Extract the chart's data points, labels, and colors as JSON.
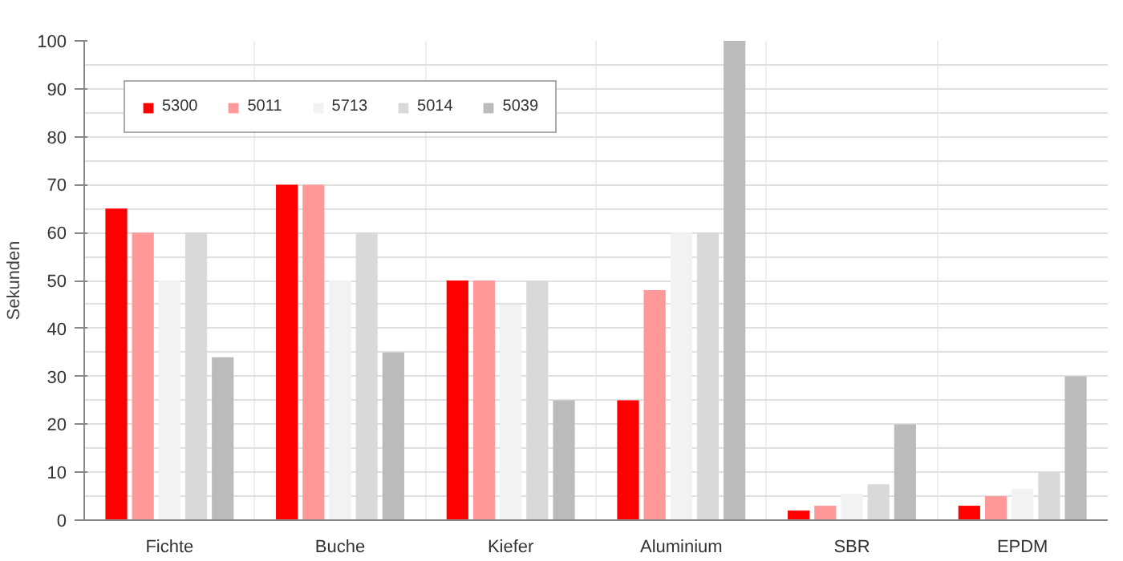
{
  "chart_data": {
    "type": "bar",
    "ylabel": "Sekunden",
    "categories": [
      "Fichte",
      "Buche",
      "Kiefer",
      "Aluminium",
      "SBR",
      "EPDM"
    ],
    "series": [
      {
        "name": "5300",
        "color": "#ff0000",
        "values": [
          65,
          70,
          50,
          25,
          2,
          3
        ]
      },
      {
        "name": "5011",
        "color": "#ff9999",
        "values": [
          60,
          70,
          50,
          48,
          3,
          5
        ]
      },
      {
        "name": "5713",
        "color": "#f2f2f2",
        "values": [
          50,
          50,
          45,
          60,
          5.5,
          6.5
        ]
      },
      {
        "name": "5014",
        "color": "#d9d9d9",
        "values": [
          60,
          60,
          50,
          60,
          7.5,
          10
        ]
      },
      {
        "name": "5039",
        "color": "#bbbbbb",
        "values": [
          34,
          35,
          25,
          100,
          20,
          30
        ]
      }
    ],
    "ylim": [
      0,
      100
    ],
    "yticks": [
      0,
      10,
      20,
      30,
      40,
      50,
      60,
      70,
      80,
      90,
      100
    ],
    "grid": true,
    "legend": "top left"
  }
}
